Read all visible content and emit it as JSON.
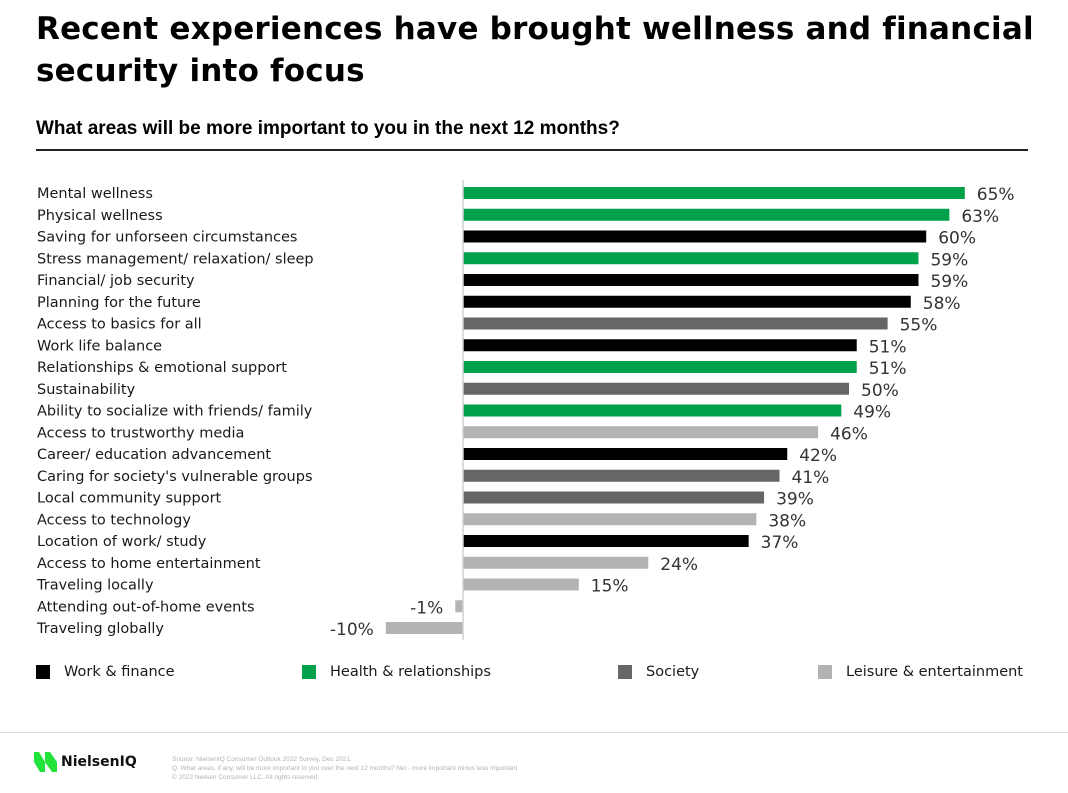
{
  "header": {
    "title": "Recent experiences have brought wellness and financial security into focus",
    "subtitle": "What areas will be more important to you in the next 12 months?"
  },
  "colors": {
    "work_finance": "#000000",
    "health_relationships": "#00A14B",
    "society": "#666666",
    "leisure_entertainment": "#B3B3B3",
    "brand_green": "#21E33A"
  },
  "chart_data": {
    "type": "bar",
    "orientation": "horizontal",
    "title": "What areas will be more important to you in the next 12 months?",
    "xlabel": "",
    "ylabel": "",
    "unit": "%",
    "xlim": [
      -10,
      65
    ],
    "grid": false,
    "legend_position": "bottom",
    "categories": [
      "Mental wellness",
      "Physical wellness",
      "Saving for unforseen circumstances",
      "Stress management/ relaxation/ sleep",
      "Financial/ job security",
      "Planning for the future",
      "Access to basics for all",
      "Work life balance",
      "Relationships & emotional support",
      "Sustainability",
      "Ability to socialize with friends/ family",
      "Access to trustworthy media",
      "Career/ education advancement",
      "Caring for society's vulnerable groups",
      "Local community support",
      "Access to technology",
      "Location of work/ study",
      "Access to home entertainment",
      "Traveling locally",
      "Attending out-of-home events",
      "Traveling globally"
    ],
    "values": [
      65,
      63,
      60,
      59,
      59,
      58,
      55,
      51,
      51,
      50,
      49,
      46,
      42,
      41,
      39,
      38,
      37,
      24,
      15,
      -1,
      -10
    ],
    "value_labels": [
      "65%",
      "63%",
      "60%",
      "59%",
      "59%",
      "58%",
      "55%",
      "51%",
      "51%",
      "50%",
      "49%",
      "46%",
      "42%",
      "41%",
      "39%",
      "38%",
      "37%",
      "24%",
      "15%",
      "-1%",
      "-10%"
    ],
    "groups": [
      "health_relationships",
      "health_relationships",
      "work_finance",
      "health_relationships",
      "work_finance",
      "work_finance",
      "society",
      "work_finance",
      "health_relationships",
      "society",
      "health_relationships",
      "leisure_entertainment",
      "work_finance",
      "society",
      "society",
      "leisure_entertainment",
      "work_finance",
      "leisure_entertainment",
      "leisure_entertainment",
      "leisure_entertainment",
      "leisure_entertainment"
    ],
    "legend": [
      {
        "key": "work_finance",
        "label": "Work & finance"
      },
      {
        "key": "health_relationships",
        "label": "Health & relationships"
      },
      {
        "key": "society",
        "label": "Society"
      },
      {
        "key": "leisure_entertainment",
        "label": "Leisure & entertainment"
      }
    ]
  },
  "footer": {
    "logo_text": "NielsenIQ",
    "source": "Source: NielsenIQ Consumer Outlook 2022 Survey, Dec 2021.",
    "question": "Q. What areas, if any, will be more important to you over the next 12 months? Net - more important minus less important",
    "copyright": "© 2022 Nielsen Consumer LLC. All rights reserved."
  }
}
